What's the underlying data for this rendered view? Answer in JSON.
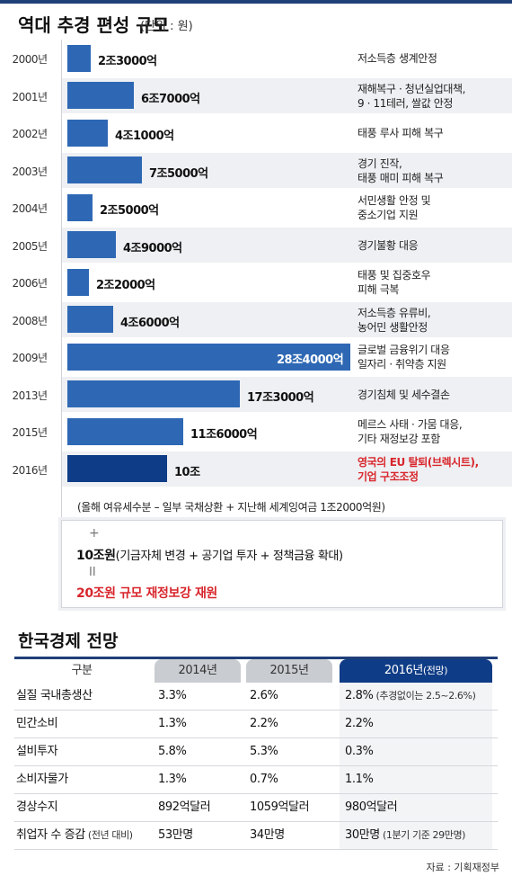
{
  "header": {
    "title": "역대 추경 편성 규모",
    "unit": "(단위 : 원)"
  },
  "chart_data": {
    "type": "bar",
    "orientation": "horizontal",
    "categories": [
      "2000년",
      "2001년",
      "2002년",
      "2003년",
      "2004년",
      "2005년",
      "2006년",
      "2008년",
      "2009년",
      "2013년",
      "2015년",
      "2016년"
    ],
    "values": [
      2.3,
      6.7,
      4.1,
      7.5,
      2.5,
      4.9,
      2.2,
      4.6,
      28.4,
      17.3,
      11.6,
      10.0
    ],
    "value_labels": [
      "2조3000억",
      "6조7000억",
      "4조1000억",
      "7조5000억",
      "2조5000억",
      "4조9000억",
      "2조2000억",
      "4조6000억",
      "28조4000억",
      "17조3000억",
      "11조6000억",
      "10조"
    ],
    "notes": [
      [
        "저소득층 생계안정"
      ],
      [
        "재해복구 · 청년실업대책,",
        "9 · 11테러, 쌀값 안정"
      ],
      [
        "태풍 루사 피해 복구"
      ],
      [
        "경기 진작,",
        "태풍 매미 피해 복구"
      ],
      [
        "서민생활 안정 및",
        "중소기업 지원"
      ],
      [
        "경기불황 대응"
      ],
      [
        "태풍 및 집중호우",
        "피해 극복"
      ],
      [
        "저소득층 유류비,",
        "농어민 생활안정"
      ],
      [
        "글로벌 금융위기 대응",
        "일자리 · 취약층 지원"
      ],
      [
        "경기침체 및 세수결손"
      ],
      [
        "메르스 사태 · 가뭄 대응,",
        "기타 재정보강 포함"
      ],
      [
        "영국의 EU 탈퇴(브렉시트),",
        "기업 구조조정"
      ]
    ],
    "highlight_index": 11,
    "bar_color": "#2e68b4",
    "highlight_color": "#0f3c86",
    "xlim": [
      0,
      28.4
    ],
    "footnote": "(올해 여유세수분 – 일부 국채상환 + 지난해 세계잉여금 1조2000억원)"
  },
  "formula": {
    "plus": "+",
    "line1_bold": "10조원",
    "line1_rest": "(기금자체 변경 + 공기업 투자 + 정책금융 확대)",
    "equals": "II",
    "line2": "20조원 규모 재정보강 재원",
    "line2_color": "#d8262c"
  },
  "table": {
    "title": "한국경제 전망",
    "headers": [
      "구분",
      "2014년",
      "2015년",
      "2016년",
      "(전망)"
    ],
    "rows": [
      {
        "label": "실질 국내총생산",
        "label_small": "",
        "v2014": "3.3%",
        "v2015": "2.6%",
        "v2016": "2.8%",
        "v2016_small": " (추경없이는 2.5~2.6%)"
      },
      {
        "label": "민간소비",
        "label_small": "",
        "v2014": "1.3%",
        "v2015": "2.2%",
        "v2016": "2.2%",
        "v2016_small": ""
      },
      {
        "label": "설비투자",
        "label_small": "",
        "v2014": "5.8%",
        "v2015": "5.3%",
        "v2016": "0.3%",
        "v2016_small": ""
      },
      {
        "label": "소비자물가",
        "label_small": "",
        "v2014": "1.3%",
        "v2015": "0.7%",
        "v2016": "1.1%",
        "v2016_small": ""
      },
      {
        "label": "경상수지",
        "label_small": "",
        "v2014": "892억달러",
        "v2015": "1059억달러",
        "v2016": "980억달러",
        "v2016_small": ""
      },
      {
        "label": "취업자 수 증감",
        "label_small": " (전년 대비)",
        "v2014": "53만명",
        "v2015": "34만명",
        "v2016": "30만명",
        "v2016_small": " (1분기 기준 29만명)"
      }
    ]
  },
  "source": "자료 : 기획재정부"
}
